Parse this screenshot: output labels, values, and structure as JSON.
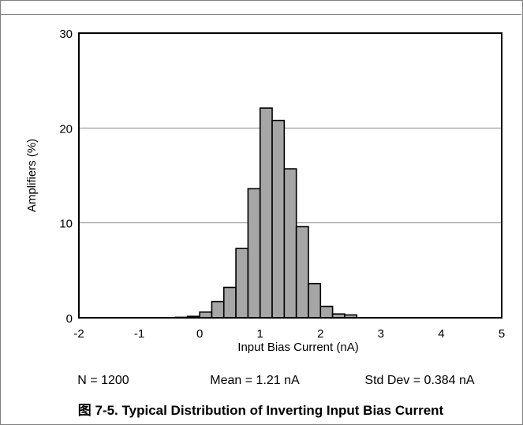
{
  "chart_data": {
    "type": "bar",
    "xlabel": "Input Bias Current (nA)",
    "ylabel": "Amplifiers (%)",
    "xlim": [
      -2,
      5
    ],
    "ylim": [
      0,
      30
    ],
    "xticks": [
      "-2",
      "-1",
      "0",
      "1",
      "2",
      "3",
      "4",
      "5"
    ],
    "yticks": [
      "0",
      "10",
      "20",
      "30"
    ],
    "grid": true,
    "bin_width": 0.2,
    "bins": [
      -0.4,
      -0.2,
      0.0,
      0.2,
      0.4,
      0.6,
      0.8,
      1.0,
      1.2,
      1.4,
      1.6,
      1.8,
      2.0,
      2.2,
      2.4
    ],
    "values": [
      0.05,
      0.15,
      0.6,
      1.7,
      3.2,
      7.3,
      13.6,
      22.1,
      20.8,
      15.7,
      9.6,
      3.6,
      1.2,
      0.4,
      0.3
    ],
    "bar_color": "#a6a6a6",
    "stats": {
      "n": "N = 1200",
      "mean": "Mean = 1.21 nA",
      "std": "Std Dev = 0.384 nA"
    }
  },
  "caption": "图 7-5. Typical Distribution of Inverting Input Bias Current"
}
